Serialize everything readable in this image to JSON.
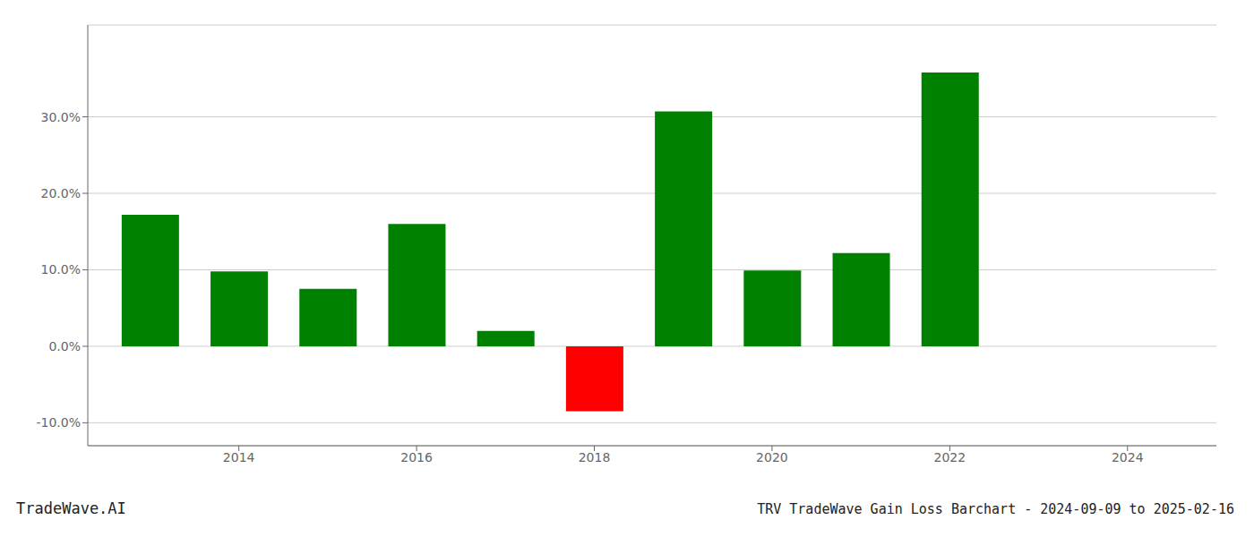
{
  "chart_data": {
    "type": "bar",
    "title": "TRV TradeWave Gain Loss Barchart - 2024-09-09 to 2025-02-16",
    "annotations": [
      "TradeWave.AI"
    ],
    "x": [
      2013,
      2014,
      2015,
      2016,
      2017,
      2018,
      2019,
      2020,
      2021,
      2022,
      2023
    ],
    "values": [
      0.172,
      0.098,
      0.075,
      0.16,
      0.02,
      -0.085,
      0.307,
      0.099,
      0.122,
      0.358,
      0.0
    ],
    "colors": [
      "#008000",
      "#008000",
      "#008000",
      "#008000",
      "#008000",
      "#ff0000",
      "#008000",
      "#008000",
      "#008000",
      "#008000",
      "#008000"
    ],
    "xlim": [
      2012.3,
      2025.0
    ],
    "xticks": [
      2014,
      2016,
      2018,
      2020,
      2022,
      2024
    ],
    "ylim": [
      -0.13,
      0.42
    ],
    "yticks": [
      {
        "value": -0.1,
        "label": "-10.0%"
      },
      {
        "value": 0.0,
        "label": "0.0%"
      },
      {
        "value": 0.1,
        "label": "10.0%"
      },
      {
        "value": 0.2,
        "label": "20.0%"
      },
      {
        "value": 0.3,
        "label": "30.0%"
      }
    ],
    "grid": true
  }
}
